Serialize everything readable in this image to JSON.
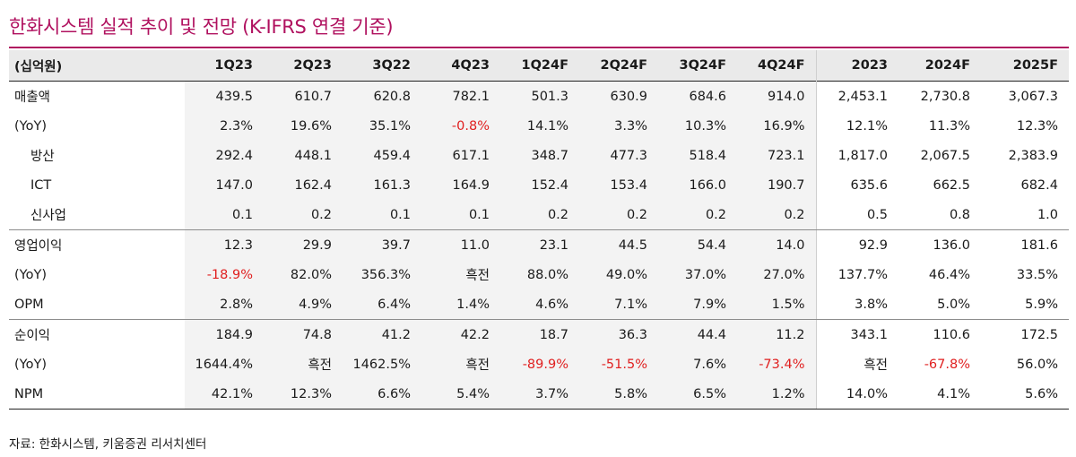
{
  "title": "한화시스템 실적 추이 및 전망 (K-IFRS 연결 기준)",
  "unit_label": "(십억원)",
  "columns": [
    "1Q23",
    "2Q23",
    "3Q22",
    "4Q23",
    "1Q24F",
    "2Q24F",
    "3Q24F",
    "4Q24F",
    "2023",
    "2024F",
    "2025F"
  ],
  "rows": [
    {
      "label": "매출액",
      "values": [
        "439.5",
        "610.7",
        "620.8",
        "782.1",
        "501.3",
        "630.9",
        "684.6",
        "914.0",
        "2,453.1",
        "2,730.8",
        "3,067.3"
      ]
    },
    {
      "label": "(YoY)",
      "values": [
        "2.3%",
        "19.6%",
        "35.1%",
        "-0.8%",
        "14.1%",
        "3.3%",
        "10.3%",
        "16.9%",
        "12.1%",
        "11.3%",
        "12.3%"
      ]
    },
    {
      "label": "방산",
      "values": [
        "292.4",
        "448.1",
        "459.4",
        "617.1",
        "348.7",
        "477.3",
        "518.4",
        "723.1",
        "1,817.0",
        "2,067.5",
        "2,383.9"
      ]
    },
    {
      "label": "ICT",
      "values": [
        "147.0",
        "162.4",
        "161.3",
        "164.9",
        "152.4",
        "153.4",
        "166.0",
        "190.7",
        "635.6",
        "662.5",
        "682.4"
      ]
    },
    {
      "label": "신사업",
      "values": [
        "0.1",
        "0.2",
        "0.1",
        "0.1",
        "0.2",
        "0.2",
        "0.2",
        "0.2",
        "0.5",
        "0.8",
        "1.0"
      ]
    },
    {
      "label": "영업이익",
      "values": [
        "12.3",
        "29.9",
        "39.7",
        "11.0",
        "23.1",
        "44.5",
        "54.4",
        "14.0",
        "92.9",
        "136.0",
        "181.6"
      ]
    },
    {
      "label": "(YoY)",
      "values": [
        "-18.9%",
        "82.0%",
        "356.3%",
        "흑전",
        "88.0%",
        "49.0%",
        "37.0%",
        "27.0%",
        "137.7%",
        "46.4%",
        "33.5%"
      ]
    },
    {
      "label": "OPM",
      "values": [
        "2.8%",
        "4.9%",
        "6.4%",
        "1.4%",
        "4.6%",
        "7.1%",
        "7.9%",
        "1.5%",
        "3.8%",
        "5.0%",
        "5.9%"
      ]
    },
    {
      "label": "순이익",
      "values": [
        "184.9",
        "74.8",
        "41.2",
        "42.2",
        "18.7",
        "36.3",
        "44.4",
        "11.2",
        "343.1",
        "110.6",
        "172.5"
      ]
    },
    {
      "label": "(YoY)",
      "values": [
        "1644.4%",
        "흑전",
        "1462.5%",
        "흑전",
        "-89.9%",
        "-51.5%",
        "7.6%",
        "-73.4%",
        "흑전",
        "-67.8%",
        "56.0%"
      ]
    },
    {
      "label": "NPM",
      "values": [
        "42.1%",
        "12.3%",
        "6.6%",
        "5.4%",
        "3.7%",
        "5.8%",
        "6.5%",
        "1.2%",
        "14.0%",
        "4.1%",
        "5.6%"
      ]
    }
  ],
  "source": "자료: 한화시스템, 키움증권 리서치센터",
  "colors": {
    "title": "#b0115f",
    "negative": "#e02020",
    "quarter_bg": "#f3f3f3",
    "header_bg": "#eaeaea"
  }
}
